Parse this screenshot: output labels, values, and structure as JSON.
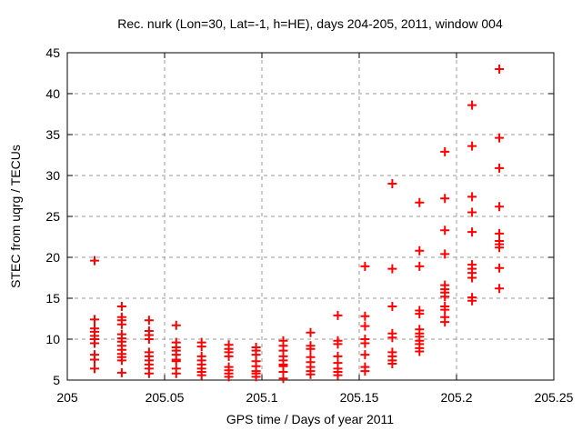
{
  "chart_data": {
    "type": "scatter",
    "title": "Rec. nurk (Lon=30, Lat=-1, h=HE), days 204-205, 2011, window 004",
    "xlabel": "GPS time / Days of year 2011",
    "ylabel": "STEC from uqrg / TECUs",
    "xlim": [
      205,
      205.25
    ],
    "ylim": [
      5,
      45
    ],
    "xticks": [
      {
        "value": 205,
        "label": "205"
      },
      {
        "value": 205.05,
        "label": "205.05"
      },
      {
        "value": 205.1,
        "label": "205.1"
      },
      {
        "value": 205.15,
        "label": "205.15"
      },
      {
        "value": 205.2,
        "label": "205.2"
      },
      {
        "value": 205.25,
        "label": "205.25"
      }
    ],
    "yticks": [
      {
        "value": 5,
        "label": "5"
      },
      {
        "value": 10,
        "label": "10"
      },
      {
        "value": 15,
        "label": "15"
      },
      {
        "value": 20,
        "label": "20"
      },
      {
        "value": 25,
        "label": "25"
      },
      {
        "value": 30,
        "label": "30"
      },
      {
        "value": 35,
        "label": "35"
      },
      {
        "value": 40,
        "label": "40"
      },
      {
        "value": 45,
        "label": "45"
      }
    ],
    "grid": true,
    "legend": "none",
    "marker": {
      "shape": "plus",
      "color": "#ff0000",
      "size": 10,
      "stroke_width": 2
    },
    "colors": {
      "marker": "#ff0000",
      "border": "#000000",
      "grid": "#999999",
      "text": "#000000",
      "background": "#ffffff"
    },
    "series": [
      {
        "name": "STEC from uqrg",
        "color": "#ff0000",
        "groups": [
          {
            "x": 205.014,
            "y": [
              19.6,
              12.4,
              11.3,
              10.9,
              10.4,
              10.0,
              9.5,
              8.1,
              7.5,
              6.4
            ]
          },
          {
            "x": 205.028,
            "y": [
              14.0,
              12.7,
              12.3,
              11.8,
              10.6,
              10.1,
              9.7,
              9.2,
              8.7,
              8.2,
              7.8,
              7.4,
              5.9
            ]
          },
          {
            "x": 205.042,
            "y": [
              12.3,
              11.0,
              10.5,
              10.0,
              8.4,
              7.9,
              7.4,
              6.9,
              6.4,
              5.8
            ]
          },
          {
            "x": 205.056,
            "y": [
              11.7,
              9.6,
              9.0,
              8.6,
              8.1,
              7.5,
              7.3,
              6.4,
              5.8
            ]
          },
          {
            "x": 205.069,
            "y": [
              9.6,
              9.1,
              7.9,
              7.4,
              6.9,
              6.4,
              6.0,
              5.6
            ]
          },
          {
            "x": 205.083,
            "y": [
              9.3,
              8.8,
              8.4,
              7.9,
              6.6,
              6.2,
              5.8,
              5.4
            ]
          },
          {
            "x": 205.097,
            "y": [
              9.0,
              8.6,
              8.1,
              7.3,
              6.7,
              6.1,
              5.8,
              5.4
            ]
          },
          {
            "x": 205.111,
            "y": [
              9.8,
              9.2,
              8.6,
              7.9,
              7.4,
              6.9,
              6.7,
              6.0,
              5.2
            ]
          },
          {
            "x": 205.125,
            "y": [
              10.8,
              9.2,
              8.8,
              7.8,
              7.2,
              6.6,
              6.1,
              5.7
            ]
          },
          {
            "x": 205.139,
            "y": [
              12.9,
              9.8,
              9.4,
              7.9,
              7.1,
              6.4,
              6.0,
              5.6
            ]
          },
          {
            "x": 205.153,
            "y": [
              18.9,
              12.8,
              11.6,
              10.0,
              9.5,
              8.1,
              6.6,
              6.1
            ]
          },
          {
            "x": 205.167,
            "y": [
              29.0,
              18.6,
              14.0,
              10.7,
              10.2,
              8.4,
              7.9,
              7.4,
              7.0
            ]
          },
          {
            "x": 205.181,
            "y": [
              26.7,
              20.8,
              18.9,
              13.5,
              13.1,
              11.2,
              10.7,
              10.3,
              9.8,
              9.4,
              8.9,
              8.5
            ]
          },
          {
            "x": 205.194,
            "y": [
              32.9,
              27.2,
              23.3,
              20.4,
              16.6,
              16.1,
              15.7,
              15.2,
              14.0,
              13.6,
              12.7,
              12.1
            ]
          },
          {
            "x": 205.208,
            "y": [
              38.6,
              33.6,
              27.4,
              25.5,
              23.1,
              19.1,
              18.6,
              18.1,
              17.5,
              15.1,
              14.7
            ]
          },
          {
            "x": 205.222,
            "y": [
              43.0,
              34.6,
              30.9,
              26.2,
              22.9,
              22.0,
              21.6,
              21.2,
              18.7,
              16.2
            ]
          }
        ]
      }
    ]
  }
}
